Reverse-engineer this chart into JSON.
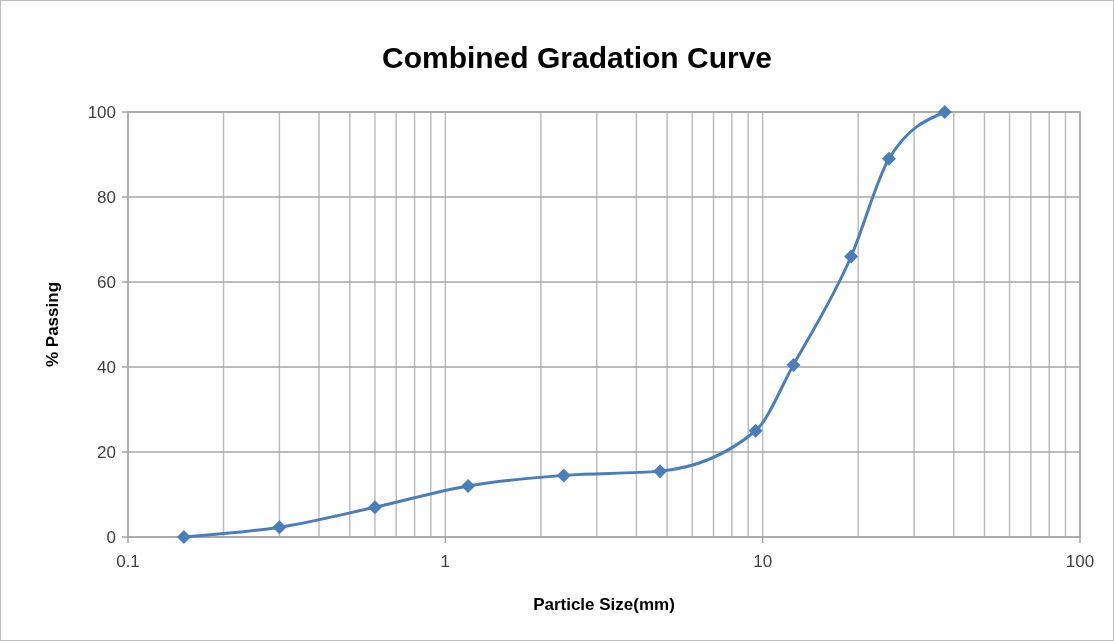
{
  "chart_data": {
    "type": "line",
    "title": "Combined Gradation Curve",
    "xlabel": "Particle Size(mm)",
    "ylabel": "% Passing",
    "x": [
      0.15,
      0.3,
      0.6,
      1.18,
      2.36,
      4.75,
      9.5,
      12.5,
      19,
      25,
      37.5
    ],
    "series": [
      {
        "color": "#4a7ebb",
        "values": [
          0,
          2.3,
          7,
          12,
          14.5,
          15.5,
          25,
          40.5,
          66,
          89,
          100
        ]
      }
    ],
    "log": "x",
    "xlim": [
      0.1,
      100
    ],
    "ylim": [
      0,
      100
    ],
    "xticks": [
      0.1,
      {
        "value": 0.2,
        "label": null
      },
      {
        "value": 0.3,
        "label": null
      },
      {
        "value": 0.4,
        "label": null
      },
      {
        "value": 0.5,
        "label": null
      },
      {
        "value": 0.6,
        "label": null
      },
      {
        "value": 0.7,
        "label": null
      },
      {
        "value": 0.8,
        "label": null
      },
      {
        "value": 0.9,
        "label": null
      },
      1,
      {
        "value": 2,
        "label": null
      },
      {
        "value": 3,
        "label": null
      },
      {
        "value": 4,
        "label": null
      },
      {
        "value": 5,
        "label": null
      },
      {
        "value": 6,
        "label": null
      },
      {
        "value": 7,
        "label": null
      },
      {
        "value": 8,
        "label": null
      },
      {
        "value": 9,
        "label": null
      },
      10,
      {
        "value": 20,
        "label": null
      },
      {
        "value": 30,
        "label": null
      },
      {
        "value": 40,
        "label": null
      },
      {
        "value": 50,
        "label": null
      },
      {
        "value": 60,
        "label": null
      },
      {
        "value": 70,
        "label": null
      },
      {
        "value": 80,
        "label": null
      },
      {
        "value": 90,
        "label": null
      },
      100
    ],
    "yticks": [
      0,
      20,
      40,
      60,
      80,
      100
    ],
    "grid": true,
    "marker": "diamond",
    "line_style": "solid"
  }
}
